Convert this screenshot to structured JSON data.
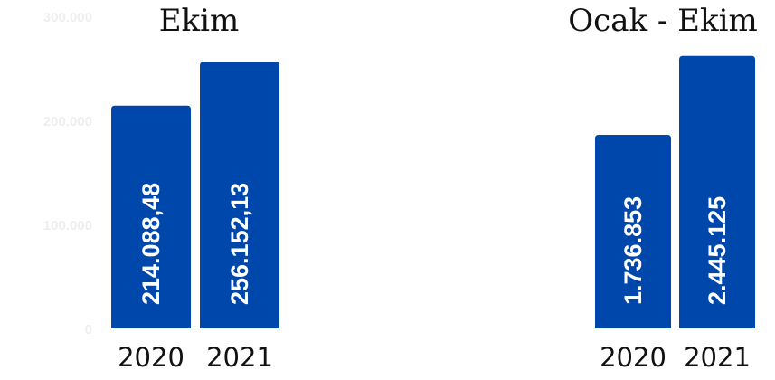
{
  "colors": {
    "bar": "#0047AB",
    "tick": "#EEEEEE",
    "text": "#111111"
  },
  "chart_data": [
    {
      "type": "bar",
      "title": "Ekim",
      "categories": [
        "2020",
        "2021"
      ],
      "values": [
        214088.48,
        256152.13
      ],
      "value_labels": [
        "214.088,48",
        "256.152,13"
      ],
      "ylim": [
        0,
        300000
      ],
      "yticks": [
        0,
        100000,
        200000,
        300000
      ],
      "ytick_labels": [
        "0",
        "100.000",
        "200.000",
        "300.000"
      ],
      "grid": false
    },
    {
      "type": "bar",
      "title": "Ocak - Ekim",
      "categories": [
        "2020",
        "2021"
      ],
      "values": [
        1736853,
        2445125
      ],
      "value_labels": [
        "1.736.853",
        "2.445.125"
      ],
      "ylim": [
        0,
        2800000
      ],
      "grid": false
    }
  ]
}
